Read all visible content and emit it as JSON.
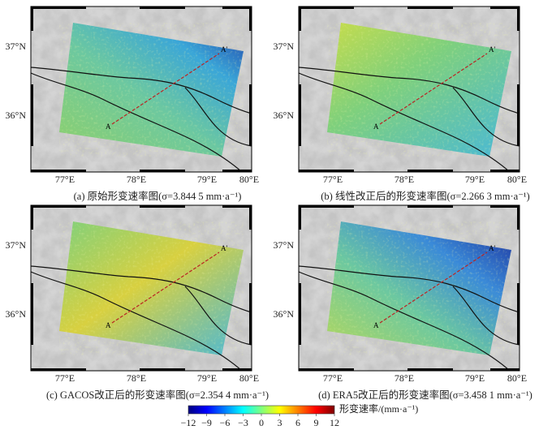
{
  "panels": [
    {
      "caption": "(a) 原始形变速率图(σ=3.844 5 mm·a⁻¹)"
    },
    {
      "caption": "(b) 线性改正后的形变速率图(σ=2.266 3 mm·a⁻¹)"
    },
    {
      "caption": "(c) GACOS改正后的形变速率图(σ=2.354 4 mm·a⁻¹)"
    },
    {
      "caption": "(d) ERA5改正后的形变速率图(σ=3.458 1 mm·a⁻¹)"
    }
  ],
  "lat_labels": [
    "37°N",
    "36°N"
  ],
  "lon_labels": [
    "77°E",
    "78°E",
    "79°E",
    "80°E"
  ],
  "profile_labels": [
    "A",
    "A'"
  ],
  "colorbar": {
    "label": "形变速率/(mm·a⁻¹)",
    "lim": [
      -12,
      12
    ],
    "ticks": [
      {
        "value": -12,
        "label": "−12"
      },
      {
        "value": -9,
        "label": "−9"
      },
      {
        "value": -6,
        "label": "−6"
      },
      {
        "value": -3,
        "label": "−3"
      },
      0,
      3,
      6,
      9,
      12
    ]
  }
}
